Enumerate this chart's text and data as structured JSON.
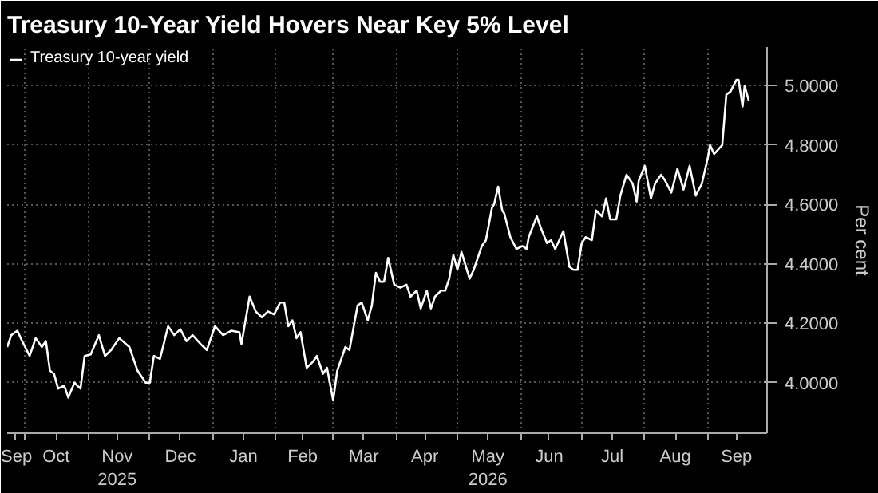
{
  "chart_data": {
    "type": "line",
    "title": "Treasury 10-Year Yield Hovers Near Key 5% Level",
    "ylabel": "Per cent",
    "x": [
      "2025-09-22",
      "2025-09-24",
      "2025-09-27",
      "2025-09-29",
      "2025-10-03",
      "2025-10-06",
      "2025-10-09",
      "2025-10-11",
      "2025-10-13",
      "2025-10-15",
      "2025-10-17",
      "2025-10-20",
      "2025-10-22",
      "2025-10-25",
      "2025-10-28",
      "2025-10-30",
      "2025-11-02",
      "2025-11-06",
      "2025-11-09",
      "2025-11-12",
      "2025-11-16",
      "2025-11-21",
      "2025-11-25",
      "2025-11-29",
      "2025-12-01",
      "2025-12-03",
      "2025-12-06",
      "2025-12-10",
      "2025-12-13",
      "2025-12-16",
      "2025-12-19",
      "2025-12-22",
      "2025-12-26",
      "2025-12-29",
      "2026-01-02",
      "2026-01-06",
      "2026-01-10",
      "2026-01-14",
      "2026-01-15",
      "2026-01-19",
      "2026-01-22",
      "2026-01-25",
      "2026-01-28",
      "2026-01-31",
      "2026-02-03",
      "2026-02-05",
      "2026-02-07",
      "2026-02-09",
      "2026-02-11",
      "2026-02-13",
      "2026-02-16",
      "2026-02-19",
      "2026-02-21",
      "2026-02-24",
      "2026-02-26",
      "2026-03-01",
      "2026-03-03",
      "2026-03-07",
      "2026-03-09",
      "2026-03-13",
      "2026-03-15",
      "2026-03-18",
      "2026-03-20",
      "2026-03-22",
      "2026-03-24",
      "2026-03-26",
      "2026-03-28",
      "2026-03-31",
      "2026-04-03",
      "2026-04-06",
      "2026-04-08",
      "2026-04-11",
      "2026-04-13",
      "2026-04-16",
      "2026-04-18",
      "2026-04-20",
      "2026-04-23",
      "2026-04-25",
      "2026-04-27",
      "2026-04-29",
      "2026-05-01",
      "2026-05-03",
      "2026-05-07",
      "2026-05-09",
      "2026-05-13",
      "2026-05-15",
      "2026-05-18",
      "2026-05-19",
      "2026-05-21",
      "2026-05-23",
      "2026-05-24",
      "2026-05-27",
      "2026-05-30",
      "2026-06-02",
      "2026-06-04",
      "2026-06-05",
      "2026-06-09",
      "2026-06-11",
      "2026-06-14",
      "2026-06-16",
      "2026-06-18",
      "2026-06-20",
      "2026-06-22",
      "2026-06-25",
      "2026-06-27",
      "2026-06-29",
      "2026-07-01",
      "2026-07-03",
      "2026-07-06",
      "2026-07-08",
      "2026-07-11",
      "2026-07-13",
      "2026-07-15",
      "2026-07-18",
      "2026-07-20",
      "2026-07-23",
      "2026-07-26",
      "2026-07-28",
      "2026-07-29",
      "2026-08-01",
      "2026-08-04",
      "2026-08-06",
      "2026-08-09",
      "2026-08-11",
      "2026-08-14",
      "2026-08-17",
      "2026-08-20",
      "2026-08-23",
      "2026-08-26",
      "2026-08-29",
      "2026-09-01",
      "2026-09-02",
      "2026-09-04",
      "2026-09-08",
      "2026-09-10",
      "2026-09-12",
      "2026-09-15",
      "2026-09-16",
      "2026-09-18",
      "2026-09-19",
      "2026-09-21"
    ],
    "series": [
      {
        "name": "Treasury 10-year yield",
        "color": "#ffffff",
        "values": [
          4.12,
          4.16,
          4.175,
          4.145,
          4.09,
          4.15,
          4.12,
          4.14,
          4.04,
          4.03,
          3.98,
          3.99,
          3.95,
          4.0,
          3.98,
          4.09,
          4.095,
          4.16,
          4.09,
          4.11,
          4.15,
          4.12,
          4.04,
          4.0,
          4.0,
          4.09,
          4.08,
          4.19,
          4.16,
          4.18,
          4.14,
          4.16,
          4.13,
          4.11,
          4.19,
          4.16,
          4.175,
          4.17,
          4.13,
          4.29,
          4.24,
          4.22,
          4.24,
          4.23,
          4.27,
          4.27,
          4.19,
          4.21,
          4.15,
          4.17,
          4.05,
          4.07,
          4.09,
          4.03,
          4.05,
          3.94,
          4.04,
          4.12,
          4.11,
          4.26,
          4.27,
          4.21,
          4.26,
          4.37,
          4.34,
          4.34,
          4.42,
          4.33,
          4.32,
          4.33,
          4.29,
          4.31,
          4.25,
          4.31,
          4.25,
          4.29,
          4.31,
          4.31,
          4.35,
          4.43,
          4.38,
          4.44,
          4.35,
          4.38,
          4.46,
          4.48,
          4.59,
          4.6,
          4.66,
          4.58,
          4.57,
          4.49,
          4.45,
          4.46,
          4.45,
          4.49,
          4.56,
          4.52,
          4.47,
          4.48,
          4.45,
          4.48,
          4.51,
          4.39,
          4.38,
          4.38,
          4.47,
          4.49,
          4.48,
          4.58,
          4.56,
          4.62,
          4.55,
          4.55,
          4.63,
          4.7,
          4.67,
          4.61,
          4.68,
          4.73,
          4.62,
          4.67,
          4.7,
          4.68,
          4.64,
          4.72,
          4.65,
          4.73,
          4.63,
          4.67,
          4.76,
          4.8,
          4.77,
          4.8,
          4.97,
          4.98,
          5.02,
          5.02,
          4.93,
          5.0,
          4.95
        ]
      }
    ],
    "xlim": [
      "2025-09-22",
      "2026-09-30"
    ],
    "xticks": [
      {
        "value": "2025-09-26",
        "label": "Sep"
      },
      {
        "value": "2025-10-01",
        "label": null
      },
      {
        "value": "2025-10-16",
        "label": "Oct"
      },
      {
        "value": "2025-11-01",
        "label": null
      },
      {
        "value": "2025-11-15",
        "label": "Nov\n2025"
      },
      {
        "value": "2025-12-01",
        "label": null
      },
      {
        "value": "2025-12-16",
        "label": "Dec"
      },
      {
        "value": "2026-01-01",
        "label": null
      },
      {
        "value": "2026-01-16",
        "label": "Jan"
      },
      {
        "value": "2026-02-01",
        "label": null
      },
      {
        "value": "2026-02-14",
        "label": "Feb"
      },
      {
        "value": "2026-03-01",
        "label": null
      },
      {
        "value": "2026-03-16",
        "label": "Mar"
      },
      {
        "value": "2026-04-01",
        "label": null
      },
      {
        "value": "2026-04-15",
        "label": "Apr"
      },
      {
        "value": "2026-05-01",
        "label": null
      },
      {
        "value": "2026-05-16",
        "label": "May\n2026"
      },
      {
        "value": "2026-06-01",
        "label": null
      },
      {
        "value": "2026-06-15",
        "label": "Jun"
      },
      {
        "value": "2026-07-01",
        "label": null
      },
      {
        "value": "2026-07-16",
        "label": "Jul"
      },
      {
        "value": "2026-08-01",
        "label": null
      },
      {
        "value": "2026-08-16",
        "label": "Aug"
      },
      {
        "value": "2026-09-01",
        "label": null
      },
      {
        "value": "2026-09-15",
        "label": "Sep"
      }
    ],
    "ylim": [
      3.83,
      5.13
    ],
    "yticks": [
      {
        "value": 4.0,
        "label": "4.0000"
      },
      {
        "value": 4.2,
        "label": "4.2000"
      },
      {
        "value": 4.4,
        "label": "4.4000"
      },
      {
        "value": 4.6,
        "label": "4.6000"
      },
      {
        "value": 4.8,
        "label": "4.8000"
      },
      {
        "value": 5.0,
        "label": "5.0000"
      }
    ],
    "grid": true,
    "legend": "top left",
    "marker": "none",
    "line_style": "solid"
  }
}
